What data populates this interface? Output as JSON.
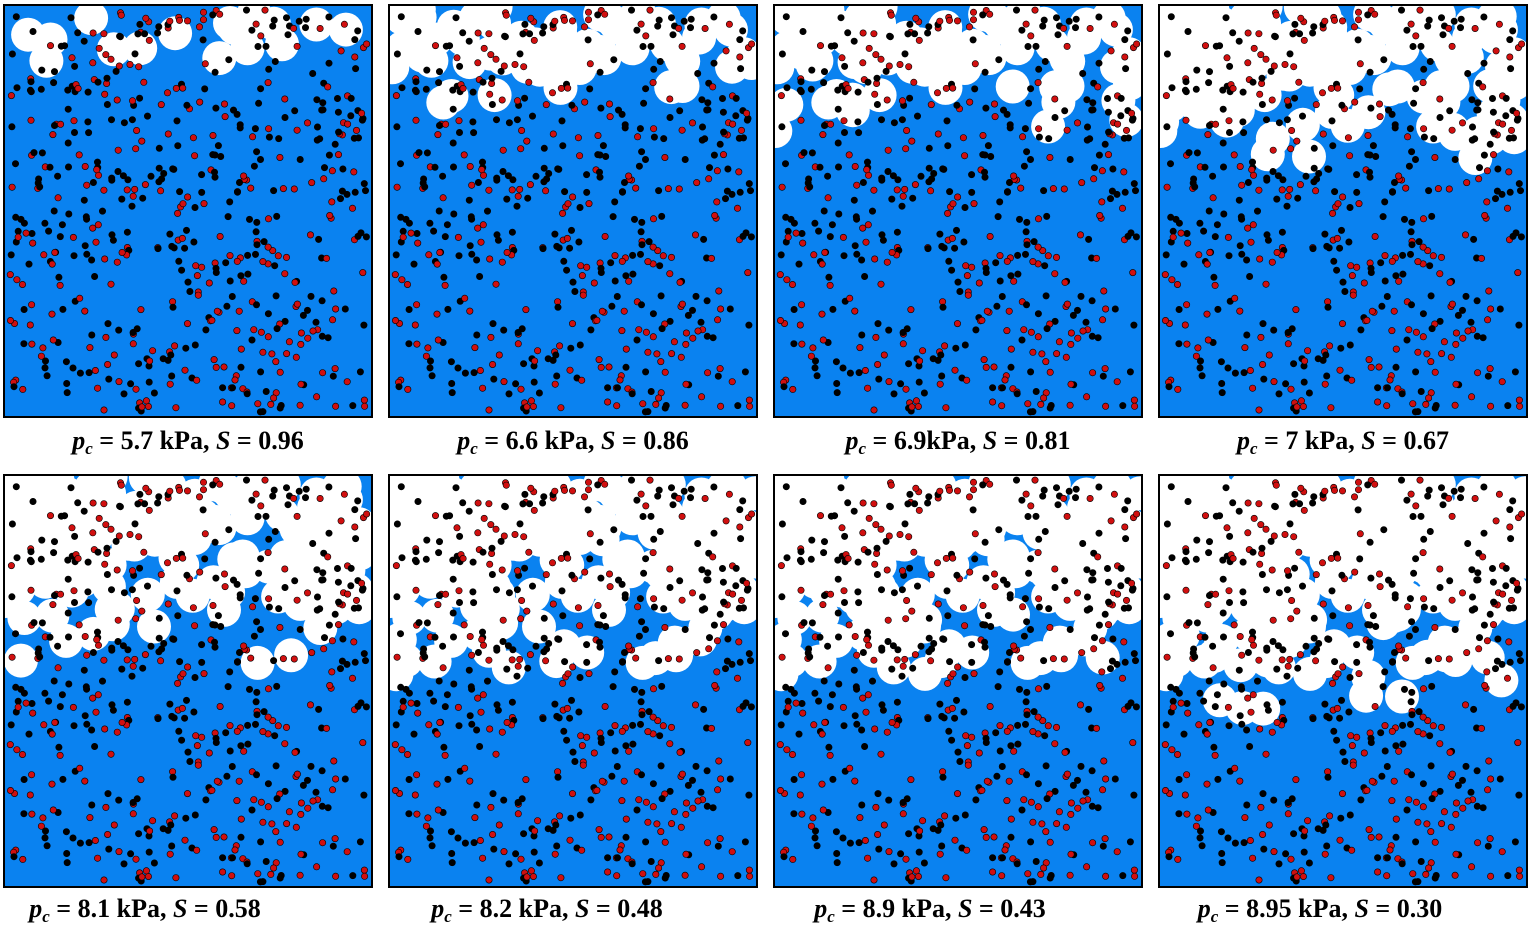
{
  "colors": {
    "water": "#0a82f0",
    "air": "#ffffff",
    "grain_a": "#d10f0f",
    "grain_b": "#000000"
  },
  "panels": [
    {
      "pc": "5.7 kPa",
      "S": "0.96",
      "saturation": 0.96
    },
    {
      "pc": "6.6 kPa",
      "S": "0.86",
      "saturation": 0.86
    },
    {
      "pc": "6.9kPa",
      "S": "0.81",
      "saturation": 0.81
    },
    {
      "pc": "7 kPa",
      "S": "0.67",
      "saturation": 0.67
    },
    {
      "pc": "8.1 kPa",
      "S": "0.58",
      "saturation": 0.58
    },
    {
      "pc": "8.2 kPa",
      "S": "0.48",
      "saturation": 0.48
    },
    {
      "pc": "8.9 kPa",
      "S": "0.43",
      "saturation": 0.43
    },
    {
      "pc": "8.95 kPa",
      "S": "0.30",
      "saturation": 0.3
    }
  ],
  "label_parts": {
    "p_symbol": "p",
    "p_sub": "c",
    "eq": " = ",
    "sep": ", ",
    "s_symbol": "S"
  }
}
